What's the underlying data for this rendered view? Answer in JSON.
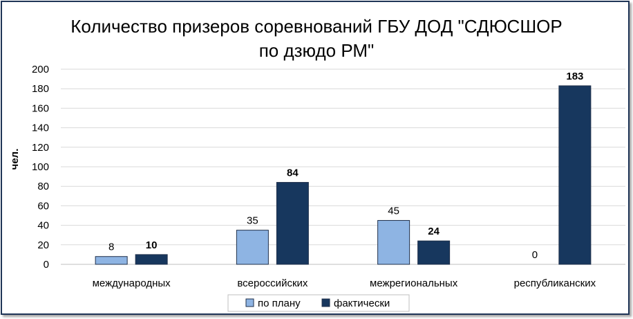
{
  "chart_data": {
    "type": "bar",
    "title_lines": [
      "Количество призеров соревнований ГБУ ДОД \"СДЮСШОР",
      "по дзюдо РМ\""
    ],
    "ylabel": "чел.",
    "xlabel": "",
    "ylim": [
      0,
      200
    ],
    "yticks": [
      0,
      20,
      40,
      60,
      80,
      100,
      120,
      140,
      160,
      180,
      200
    ],
    "grid": true,
    "legend_position": "bottom",
    "categories": [
      "международных",
      "всероссийских",
      "межрегиональных",
      "республиканских"
    ],
    "series": [
      {
        "name": "по плану",
        "values": [
          8,
          35,
          45,
          0
        ],
        "color": "#8eb4e3",
        "label_bold": false
      },
      {
        "name": "фактически",
        "values": [
          10,
          84,
          24,
          183
        ],
        "color": "#17375e",
        "label_bold": true
      }
    ]
  }
}
